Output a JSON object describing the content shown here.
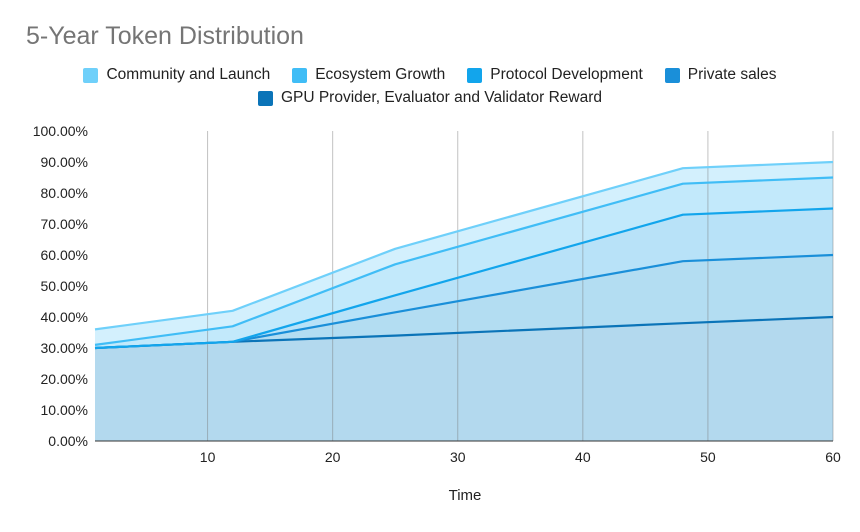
{
  "chart_data": {
    "type": "area",
    "stacked": true,
    "title": "5-Year Token Distribution",
    "xlabel": "Time",
    "ylabel": "",
    "xlim": [
      1,
      60
    ],
    "ylim": [
      0,
      100
    ],
    "x_ticks": [
      10,
      20,
      30,
      40,
      50,
      60
    ],
    "y_ticks": [
      "0.00%",
      "10.00%",
      "20.00%",
      "30.00%",
      "40.00%",
      "50.00%",
      "60.00%",
      "70.00%",
      "80.00%",
      "90.00%",
      "100.00%"
    ],
    "grid": "vertical",
    "legend_position": "top",
    "x": [
      1,
      12,
      25,
      48,
      60
    ],
    "series": [
      {
        "name": "GPU Provider, Evaluator and Validator Reward",
        "color": "#0b74b8",
        "values": [
          30,
          32,
          34,
          38,
          40
        ]
      },
      {
        "name": "Private sales",
        "color": "#1a8fd9",
        "values": [
          0,
          0,
          7.5,
          20,
          20
        ]
      },
      {
        "name": "Protocol Development",
        "color": "#12a5ec",
        "values": [
          0,
          0,
          5.5,
          15,
          15
        ]
      },
      {
        "name": "Ecosystem Growth",
        "color": "#40bdf6",
        "values": [
          1,
          5,
          10,
          10,
          10
        ]
      },
      {
        "name": "Community and Launch",
        "color": "#6fd0fa",
        "values": [
          5,
          5,
          5,
          5,
          5
        ]
      }
    ],
    "legend_rows": [
      [
        "Community and Launch",
        "Ecosystem Growth",
        "Protocol Development",
        "Private sales"
      ],
      [
        "GPU Provider, Evaluator and Validator Reward"
      ]
    ]
  }
}
